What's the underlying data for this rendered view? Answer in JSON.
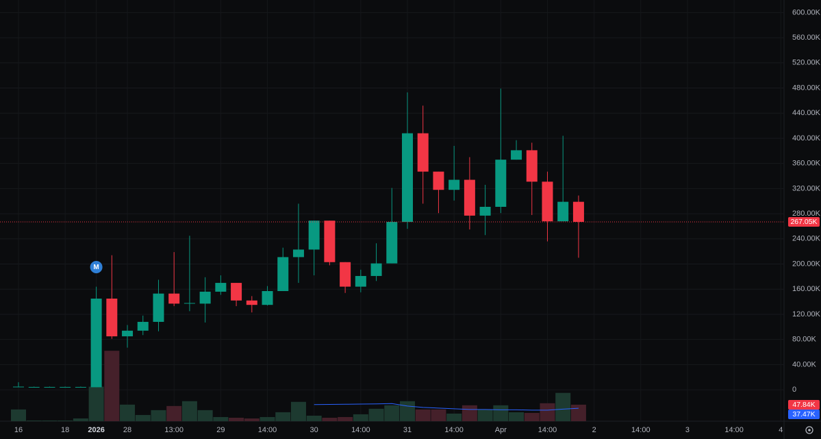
{
  "chart_data": {
    "type": "candlestick",
    "categories": [
      "16",
      null,
      null,
      "18",
      null,
      "2026",
      null,
      "28",
      null,
      null,
      "13:00",
      null,
      null,
      "29",
      null,
      null,
      "14:00",
      null,
      null,
      "30",
      null,
      null,
      "14:00",
      null,
      null,
      "31",
      null,
      null,
      "14:00",
      null,
      null,
      "Apr",
      null,
      null,
      "14:00",
      null,
      null,
      "2",
      null,
      null,
      "14:00",
      null,
      null,
      "3",
      null,
      null,
      "14:00",
      null,
      null,
      "4"
    ],
    "open": [
      4500,
      4500,
      4500,
      4500,
      4500,
      4000,
      145000,
      85000,
      94000,
      108000,
      153000,
      137000,
      137000,
      156000,
      170000,
      142000,
      135000,
      157000,
      211000,
      223000,
      269000,
      203000,
      164000,
      181000,
      201000,
      267000,
      408000,
      347000,
      318000,
      334000,
      277000,
      291000,
      366000,
      381000,
      331000,
      268000,
      299000,
      null,
      null,
      null,
      null,
      null,
      null,
      null,
      null,
      null,
      null,
      null,
      null,
      null
    ],
    "high": [
      12000,
      5000,
      5000,
      5000,
      5000,
      164000,
      214000,
      103000,
      118000,
      175000,
      219000,
      245000,
      179000,
      182000,
      170000,
      149000,
      165000,
      226000,
      296000,
      269000,
      269000,
      203000,
      191000,
      233000,
      321000,
      473000,
      452000,
      347000,
      388000,
      370000,
      326000,
      479000,
      397000,
      393000,
      347000,
      404000,
      309000,
      null,
      null,
      null,
      null,
      null,
      null,
      null,
      null,
      null,
      null,
      null,
      null,
      null
    ],
    "low": [
      4000,
      4000,
      4000,
      4000,
      4000,
      4000,
      81000,
      67000,
      87000,
      93000,
      133000,
      125000,
      107000,
      151000,
      133000,
      123000,
      134000,
      157000,
      170000,
      182000,
      198000,
      154000,
      155000,
      173000,
      201000,
      256000,
      296000,
      281000,
      301000,
      255000,
      246000,
      281000,
      366000,
      278000,
      236000,
      268000,
      210000,
      null,
      null,
      null,
      null,
      null,
      null,
      null,
      null,
      null,
      null,
      null,
      null,
      null
    ],
    "close": [
      5000,
      4500,
      4500,
      4500,
      4500,
      145000,
      85000,
      94000,
      108000,
      153000,
      137000,
      138000,
      156000,
      170000,
      142000,
      135000,
      157000,
      211000,
      223000,
      269000,
      203000,
      164000,
      181000,
      201000,
      267000,
      408000,
      347000,
      318000,
      334000,
      277000,
      291000,
      366000,
      381000,
      331000,
      268000,
      299000,
      267050,
      null,
      null,
      null,
      null,
      null,
      null,
      null,
      null,
      null,
      null,
      null,
      null,
      null
    ],
    "volume": [
      34000,
      2000,
      2000,
      2000,
      8000,
      100000,
      204000,
      48000,
      18000,
      32000,
      44000,
      58000,
      32000,
      12000,
      10000,
      8000,
      12000,
      26000,
      56000,
      16000,
      10000,
      12000,
      20000,
      36000,
      46000,
      58000,
      34000,
      34000,
      22000,
      46000,
      34000,
      46000,
      26000,
      24000,
      52000,
      82000,
      47840,
      null,
      null,
      null,
      null,
      null,
      null,
      null,
      null,
      null,
      null,
      null,
      null,
      null
    ],
    "volume_ma": [
      null,
      null,
      null,
      null,
      null,
      null,
      null,
      null,
      null,
      null,
      null,
      null,
      null,
      null,
      null,
      null,
      null,
      null,
      null,
      48000,
      48500,
      49000,
      49500,
      50000,
      51000,
      44000,
      40000,
      38000,
      36000,
      34000,
      34000,
      33000,
      33000,
      32000,
      32000,
      35000,
      37470,
      null,
      null,
      null,
      null,
      null,
      null,
      null,
      null,
      null,
      null,
      null,
      null,
      null
    ],
    "volume_label": {
      "value": 47840,
      "label": "47.84K"
    },
    "volume_ma_label": {
      "value": 37470,
      "label": "37.47K"
    },
    "price_line": {
      "value": 267050,
      "label": "267.05K"
    },
    "marker": "M",
    "up_color": "#089981",
    "down_color": "#f23645",
    "volume_up_color": "#1d3a30",
    "volume_down_color": "#45202a",
    "ma_color": "#2962ff",
    "ylim": [
      -50000,
      620000
    ],
    "volume_ylim": [
      0,
      1220000
    ],
    "yticks": [
      0,
      {
        "value": 40000,
        "label": "40.00K"
      },
      {
        "value": 80000,
        "label": "80.00K"
      },
      {
        "value": 120000,
        "label": "120.00K"
      },
      {
        "value": 160000,
        "label": "160.00K"
      },
      {
        "value": 200000,
        "label": "200.00K"
      },
      {
        "value": 240000,
        "label": "240.00K"
      },
      {
        "value": 280000,
        "label": "280.00K"
      },
      {
        "value": 320000,
        "label": "320.00K"
      },
      {
        "value": 360000,
        "label": "360.00K"
      },
      {
        "value": 400000,
        "label": "400.00K"
      },
      {
        "value": 440000,
        "label": "440.00K"
      },
      {
        "value": 480000,
        "label": "480.00K"
      },
      {
        "value": 520000,
        "label": "520.00K"
      },
      {
        "value": 560000,
        "label": "560.00K"
      },
      {
        "value": 600000,
        "label": "600.00K"
      }
    ],
    "grid": true
  }
}
